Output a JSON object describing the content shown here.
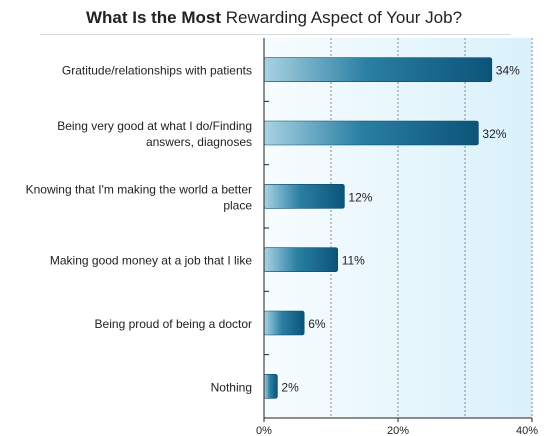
{
  "title": {
    "bold": "What Is the Most",
    "regular": "Rewarding Aspect of Your Job?"
  },
  "chart_data": {
    "type": "bar",
    "orientation": "horizontal",
    "categories": [
      [
        "Gratitude/relationships with patients"
      ],
      [
        "Being very good at what I do/Finding",
        "answers, diagnoses"
      ],
      [
        "Knowing that I'm making the world a better",
        "place"
      ],
      [
        "Making good money at a job that I like"
      ],
      [
        "Being proud of being a doctor"
      ],
      [
        "Nothing"
      ]
    ],
    "values": [
      34,
      32,
      12,
      11,
      6,
      2
    ],
    "value_labels": [
      "34%",
      "32%",
      "12%",
      "11%",
      "6%",
      "2%"
    ],
    "xlim": [
      0,
      40
    ],
    "x_ticks": [
      0,
      20,
      40
    ],
    "x_tick_labels": [
      "0%",
      "20%",
      "40%"
    ],
    "grid": "vertical dashed",
    "colors": {
      "bar_light": "#a9d3e3",
      "bar_mid": "#2a7fa3",
      "bar_dark": "#0b5478",
      "plot_bg_light": "#f7fcff",
      "plot_bg_dark": "#d9f1fb",
      "grid": "#8a8a8a",
      "axis": "#222222"
    }
  }
}
